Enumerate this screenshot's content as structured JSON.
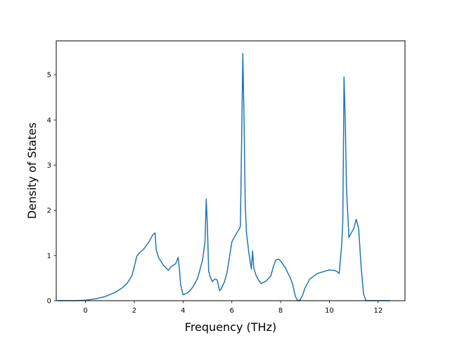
{
  "chart_data": {
    "type": "line",
    "title": "",
    "xlabel": "Frequency (THz)",
    "ylabel": "Density of States",
    "xlim": [
      -1.2,
      13.1
    ],
    "ylim": [
      0,
      5.75
    ],
    "xticks": [
      0,
      2,
      4,
      6,
      8,
      10,
      12
    ],
    "yticks": [
      0,
      1,
      2,
      3,
      4,
      5
    ],
    "grid": false,
    "legend": "none",
    "series": [
      {
        "color": "#1f77b4",
        "x": [
          -1.15,
          -0.5,
          0,
          0.4,
          0.8,
          1.2,
          1.5,
          1.7,
          1.9,
          2.0,
          2.1,
          2.2,
          2.4,
          2.6,
          2.75,
          2.85,
          2.9,
          3.0,
          3.2,
          3.4,
          3.5,
          3.7,
          3.8,
          3.85,
          3.9,
          4.0,
          4.2,
          4.4,
          4.6,
          4.8,
          4.9,
          4.95,
          5.0,
          5.05,
          5.1,
          5.2,
          5.3,
          5.4,
          5.5,
          5.55,
          5.7,
          5.8,
          5.9,
          6.0,
          6.2,
          6.3,
          6.35,
          6.4,
          6.45,
          6.5,
          6.55,
          6.6,
          6.7,
          6.8,
          6.85,
          6.9,
          7.0,
          7.1,
          7.2,
          7.4,
          7.6,
          7.7,
          7.8,
          7.9,
          8.0,
          8.2,
          8.4,
          8.5,
          8.6,
          8.7,
          8.8,
          8.9,
          9.0,
          9.2,
          9.5,
          9.8,
          10.0,
          10.2,
          10.3,
          10.4,
          10.5,
          10.55,
          10.6,
          10.65,
          10.7,
          10.8,
          11.0,
          11.1,
          11.2,
          11.3,
          11.4,
          11.5,
          12.5
        ],
        "y": [
          0,
          0,
          0.01,
          0.04,
          0.09,
          0.18,
          0.28,
          0.38,
          0.55,
          0.75,
          0.98,
          1.05,
          1.15,
          1.3,
          1.45,
          1.5,
          1.12,
          0.95,
          0.78,
          0.67,
          0.75,
          0.82,
          0.96,
          0.7,
          0.35,
          0.13,
          0.18,
          0.3,
          0.5,
          0.9,
          1.3,
          2.25,
          1.6,
          0.65,
          0.55,
          0.42,
          0.48,
          0.46,
          0.22,
          0.25,
          0.42,
          0.62,
          0.95,
          1.3,
          1.5,
          1.58,
          1.65,
          3.5,
          5.47,
          4.0,
          2.1,
          1.5,
          1.05,
          0.7,
          1.1,
          0.72,
          0.55,
          0.45,
          0.38,
          0.43,
          0.55,
          0.75,
          0.9,
          0.92,
          0.88,
          0.72,
          0.5,
          0.35,
          0.1,
          0.0,
          0.02,
          0.12,
          0.28,
          0.48,
          0.6,
          0.65,
          0.68,
          0.67,
          0.65,
          0.6,
          1.2,
          1.75,
          4.95,
          4.0,
          2.5,
          1.4,
          1.6,
          1.8,
          1.6,
          0.75,
          0.15,
          0.0,
          0.0
        ]
      }
    ]
  }
}
